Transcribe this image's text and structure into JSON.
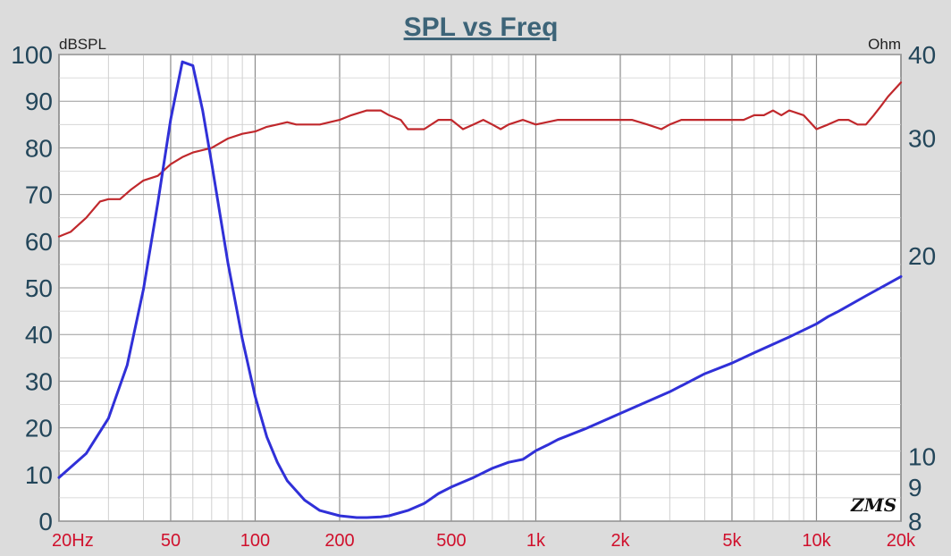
{
  "chart_data": {
    "type": "line",
    "title": "SPL vs Freq",
    "y_left_unit": "dBSPL",
    "y_right_unit": "Ohm",
    "x_scale": "log",
    "x_range": [
      20,
      20000
    ],
    "y_left_range": [
      0,
      100
    ],
    "y_right_range": [
      8,
      40
    ],
    "y_right_scale": "log",
    "x_ticks": [
      {
        "value": 20,
        "label": "20Hz"
      },
      {
        "value": 50,
        "label": "50"
      },
      {
        "value": 100,
        "label": "100"
      },
      {
        "value": 200,
        "label": "200"
      },
      {
        "value": 500,
        "label": "500"
      },
      {
        "value": 1000,
        "label": "1k"
      },
      {
        "value": 2000,
        "label": "2k"
      },
      {
        "value": 5000,
        "label": "5k"
      },
      {
        "value": 10000,
        "label": "10k"
      },
      {
        "value": 20000,
        "label": "20k"
      }
    ],
    "y_left_ticks": [
      "0",
      "10",
      "20",
      "30",
      "40",
      "50",
      "60",
      "70",
      "80",
      "90",
      "100"
    ],
    "y_right_ticks": [
      {
        "value": 8,
        "label": "8"
      },
      {
        "value": 9,
        "label": "9"
      },
      {
        "value": 10,
        "label": "10"
      },
      {
        "value": 20,
        "label": "20"
      },
      {
        "value": 30,
        "label": "30"
      },
      {
        "value": 40,
        "label": "40"
      }
    ],
    "grid": true,
    "series": [
      {
        "axis": "left",
        "color": "#c0282c",
        "x": [
          20,
          22,
          25,
          28,
          30,
          33,
          36,
          40,
          45,
          50,
          55,
          60,
          70,
          80,
          90,
          100,
          110,
          120,
          130,
          140,
          150,
          170,
          200,
          220,
          250,
          280,
          300,
          330,
          350,
          400,
          450,
          500,
          550,
          600,
          650,
          700,
          750,
          800,
          900,
          1000,
          1200,
          1400,
          1500,
          1700,
          2000,
          2200,
          2500,
          2800,
          3000,
          3300,
          3500,
          4000,
          4500,
          5000,
          5500,
          6000,
          6500,
          7000,
          7500,
          8000,
          9000,
          10000,
          11000,
          12000,
          13000,
          14000,
          15000,
          16000,
          17000,
          18000,
          20000
        ],
        "y": [
          61,
          62,
          65,
          68.5,
          69,
          69,
          71,
          73,
          74,
          76.5,
          78,
          79,
          80,
          82,
          83,
          83.5,
          84.5,
          85,
          85.5,
          85,
          85,
          85,
          86,
          87,
          88,
          88,
          87,
          86,
          84,
          84,
          86,
          86,
          84,
          85,
          86,
          85,
          84,
          85,
          86,
          85,
          86,
          86,
          86,
          86,
          86,
          86,
          85,
          84,
          85,
          86,
          86,
          86,
          86,
          86,
          86,
          87,
          87,
          88,
          87,
          88,
          87,
          84,
          85,
          86,
          86,
          85,
          85,
          87,
          89,
          91,
          94
        ]
      },
      {
        "axis": "right",
        "color": "#3030d8",
        "x": [
          20,
          25,
          30,
          35,
          40,
          45,
          50,
          55,
          60,
          65,
          70,
          80,
          90,
          100,
          110,
          120,
          130,
          150,
          170,
          200,
          230,
          250,
          280,
          300,
          350,
          400,
          450,
          500,
          600,
          700,
          800,
          900,
          1000,
          1100,
          1200,
          1500,
          2000,
          3000,
          4000,
          5000,
          6000,
          8000,
          10000,
          11000,
          12000,
          15000,
          20000
        ],
        "y": [
          9.3,
          10.1,
          11.4,
          13.7,
          17.8,
          24,
          32,
          39,
          38.5,
          33,
          27.5,
          19.5,
          15,
          12.3,
          10.7,
          9.8,
          9.2,
          8.6,
          8.3,
          8.15,
          8.1,
          8.1,
          8.12,
          8.15,
          8.3,
          8.5,
          8.8,
          9.0,
          9.3,
          9.6,
          9.8,
          9.9,
          10.2,
          10.4,
          10.6,
          11.0,
          11.6,
          12.5,
          13.3,
          13.8,
          14.3,
          15.1,
          15.8,
          16.2,
          16.5,
          17.4,
          18.6
        ]
      }
    ]
  },
  "watermark": "ZMS"
}
